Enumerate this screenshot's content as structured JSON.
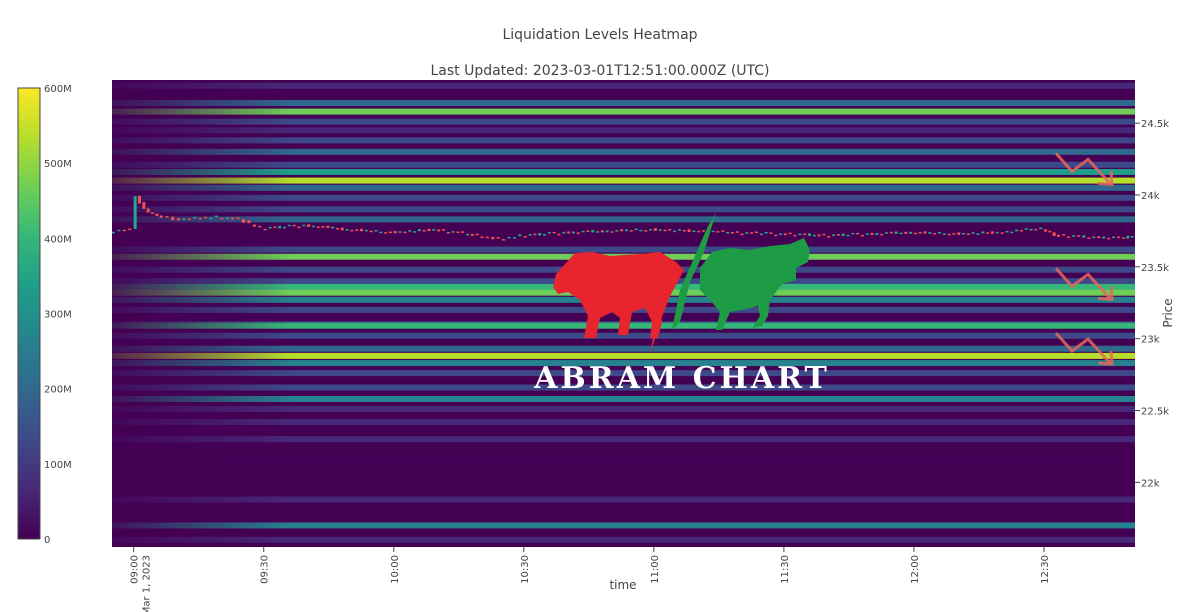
{
  "title": "Liquidation Levels Heatmap",
  "subtitle": "Last Updated: 2023-03-01T12:51:00.000Z (UTC)",
  "logo_text": "ABRAM CHART",
  "colors": {
    "colorscale": [
      "#440154",
      "#482878",
      "#3e4989",
      "#31688e",
      "#26828e",
      "#1f9e89",
      "#35b779",
      "#6ece58",
      "#b5de2b",
      "#fde725"
    ],
    "candle_up": "#26a69a",
    "candle_down": "#ef5350",
    "bear": "#e8242f",
    "bull": "#1e9b45",
    "arrow": "#e8665a"
  },
  "chart_data": {
    "type": "heatmap",
    "xlabel": "time",
    "ylabel": "Price",
    "x_range": [
      "2023-03-01 08:55",
      "2023-03-01 12:51"
    ],
    "y_range": [
      21550,
      24800
    ],
    "x_ticks": [
      {
        "label": "09:00",
        "sub": "Mar 1, 2023",
        "time": "09:00"
      },
      {
        "label": "09:30",
        "sub": "",
        "time": "09:30"
      },
      {
        "label": "10:00",
        "sub": "",
        "time": "10:00"
      },
      {
        "label": "10:30",
        "sub": "",
        "time": "10:30"
      },
      {
        "label": "11:00",
        "sub": "",
        "time": "11:00"
      },
      {
        "label": "11:30",
        "sub": "",
        "time": "11:30"
      },
      {
        "label": "12:00",
        "sub": "",
        "time": "12:00"
      },
      {
        "label": "12:30",
        "sub": "",
        "time": "12:30"
      }
    ],
    "y_ticks": [
      {
        "label": "22k",
        "value": 22000
      },
      {
        "label": "22.5k",
        "value": 22500
      },
      {
        "label": "23k",
        "value": 23000
      },
      {
        "label": "23.5k",
        "value": 23500
      },
      {
        "label": "24k",
        "value": 24000
      },
      {
        "label": "24.5k",
        "value": 24500
      }
    ],
    "colorbar": {
      "min": 0,
      "max": 600000000,
      "ticks": [
        {
          "label": "0",
          "value": 0
        },
        {
          "label": "100M",
          "value": 100000000
        },
        {
          "label": "200M",
          "value": 200000000
        },
        {
          "label": "300M",
          "value": 300000000
        },
        {
          "label": "400M",
          "value": 400000000
        },
        {
          "label": "500M",
          "value": 500000000
        },
        {
          "label": "600M",
          "value": 600000000
        }
      ]
    },
    "liquidation_levels": [
      {
        "price": 24760,
        "value": 70000000
      },
      {
        "price": 24640,
        "value": 230000000
      },
      {
        "price": 24580,
        "value": 440000000
      },
      {
        "price": 24510,
        "value": 120000000
      },
      {
        "price": 24450,
        "value": 80000000
      },
      {
        "price": 24380,
        "value": 150000000
      },
      {
        "price": 24300,
        "value": 230000000
      },
      {
        "price": 24210,
        "value": 100000000
      },
      {
        "price": 24160,
        "value": 300000000
      },
      {
        "price": 24100,
        "value": 560000000
      },
      {
        "price": 24050,
        "value": 200000000
      },
      {
        "price": 23980,
        "value": 130000000
      },
      {
        "price": 23900,
        "value": 150000000
      },
      {
        "price": 23830,
        "value": 230000000
      },
      {
        "price": 23620,
        "value": 160000000
      },
      {
        "price": 23570,
        "value": 470000000
      },
      {
        "price": 23480,
        "value": 110000000
      },
      {
        "price": 23400,
        "value": 120000000
      },
      {
        "price": 23360,
        "value": 420000000
      },
      {
        "price": 23320,
        "value": 470000000
      },
      {
        "price": 23270,
        "value": 250000000
      },
      {
        "price": 23200,
        "value": 100000000
      },
      {
        "price": 23100,
        "value": 120000000
      },
      {
        "price": 23090,
        "value": 430000000
      },
      {
        "price": 23020,
        "value": 100000000
      },
      {
        "price": 22930,
        "value": 200000000
      },
      {
        "price": 22880,
        "value": 540000000
      },
      {
        "price": 22830,
        "value": 260000000
      },
      {
        "price": 22760,
        "value": 100000000
      },
      {
        "price": 22660,
        "value": 130000000
      },
      {
        "price": 22580,
        "value": 240000000
      },
      {
        "price": 22510,
        "value": 90000000
      },
      {
        "price": 22420,
        "value": 70000000
      },
      {
        "price": 22300,
        "value": 50000000
      },
      {
        "price": 22150,
        "value": 30000000
      },
      {
        "price": 21880,
        "value": 60000000
      },
      {
        "price": 21700,
        "value": 290000000
      },
      {
        "price": 21600,
        "value": 40000000
      }
    ],
    "price_series": [
      {
        "time": "08:55",
        "price": 23750
      },
      {
        "time": "09:00",
        "price": 23760
      },
      {
        "time": "09:01",
        "price": 24000
      },
      {
        "time": "09:03",
        "price": 23900
      },
      {
        "time": "09:06",
        "price": 23860
      },
      {
        "time": "09:10",
        "price": 23830
      },
      {
        "time": "09:15",
        "price": 23840
      },
      {
        "time": "09:20",
        "price": 23850
      },
      {
        "time": "09:25",
        "price": 23830
      },
      {
        "time": "09:30",
        "price": 23770
      },
      {
        "time": "09:40",
        "price": 23790
      },
      {
        "time": "09:50",
        "price": 23760
      },
      {
        "time": "10:00",
        "price": 23740
      },
      {
        "time": "10:10",
        "price": 23760
      },
      {
        "time": "10:20",
        "price": 23720
      },
      {
        "time": "10:25",
        "price": 23690
      },
      {
        "time": "10:30",
        "price": 23720
      },
      {
        "time": "10:40",
        "price": 23740
      },
      {
        "time": "10:50",
        "price": 23750
      },
      {
        "time": "11:00",
        "price": 23760
      },
      {
        "time": "11:10",
        "price": 23750
      },
      {
        "time": "11:20",
        "price": 23740
      },
      {
        "time": "11:30",
        "price": 23730
      },
      {
        "time": "11:40",
        "price": 23720
      },
      {
        "time": "11:50",
        "price": 23730
      },
      {
        "time": "12:00",
        "price": 23740
      },
      {
        "time": "12:10",
        "price": 23730
      },
      {
        "time": "12:20",
        "price": 23740
      },
      {
        "time": "12:30",
        "price": 23770
      },
      {
        "time": "12:33",
        "price": 23720
      },
      {
        "time": "12:40",
        "price": 23710
      },
      {
        "time": "12:48",
        "price": 23700
      },
      {
        "time": "12:51",
        "price": 23720
      }
    ],
    "arrow_annotations": [
      {
        "price": 24150
      },
      {
        "price": 23350
      },
      {
        "price": 22900
      }
    ]
  }
}
